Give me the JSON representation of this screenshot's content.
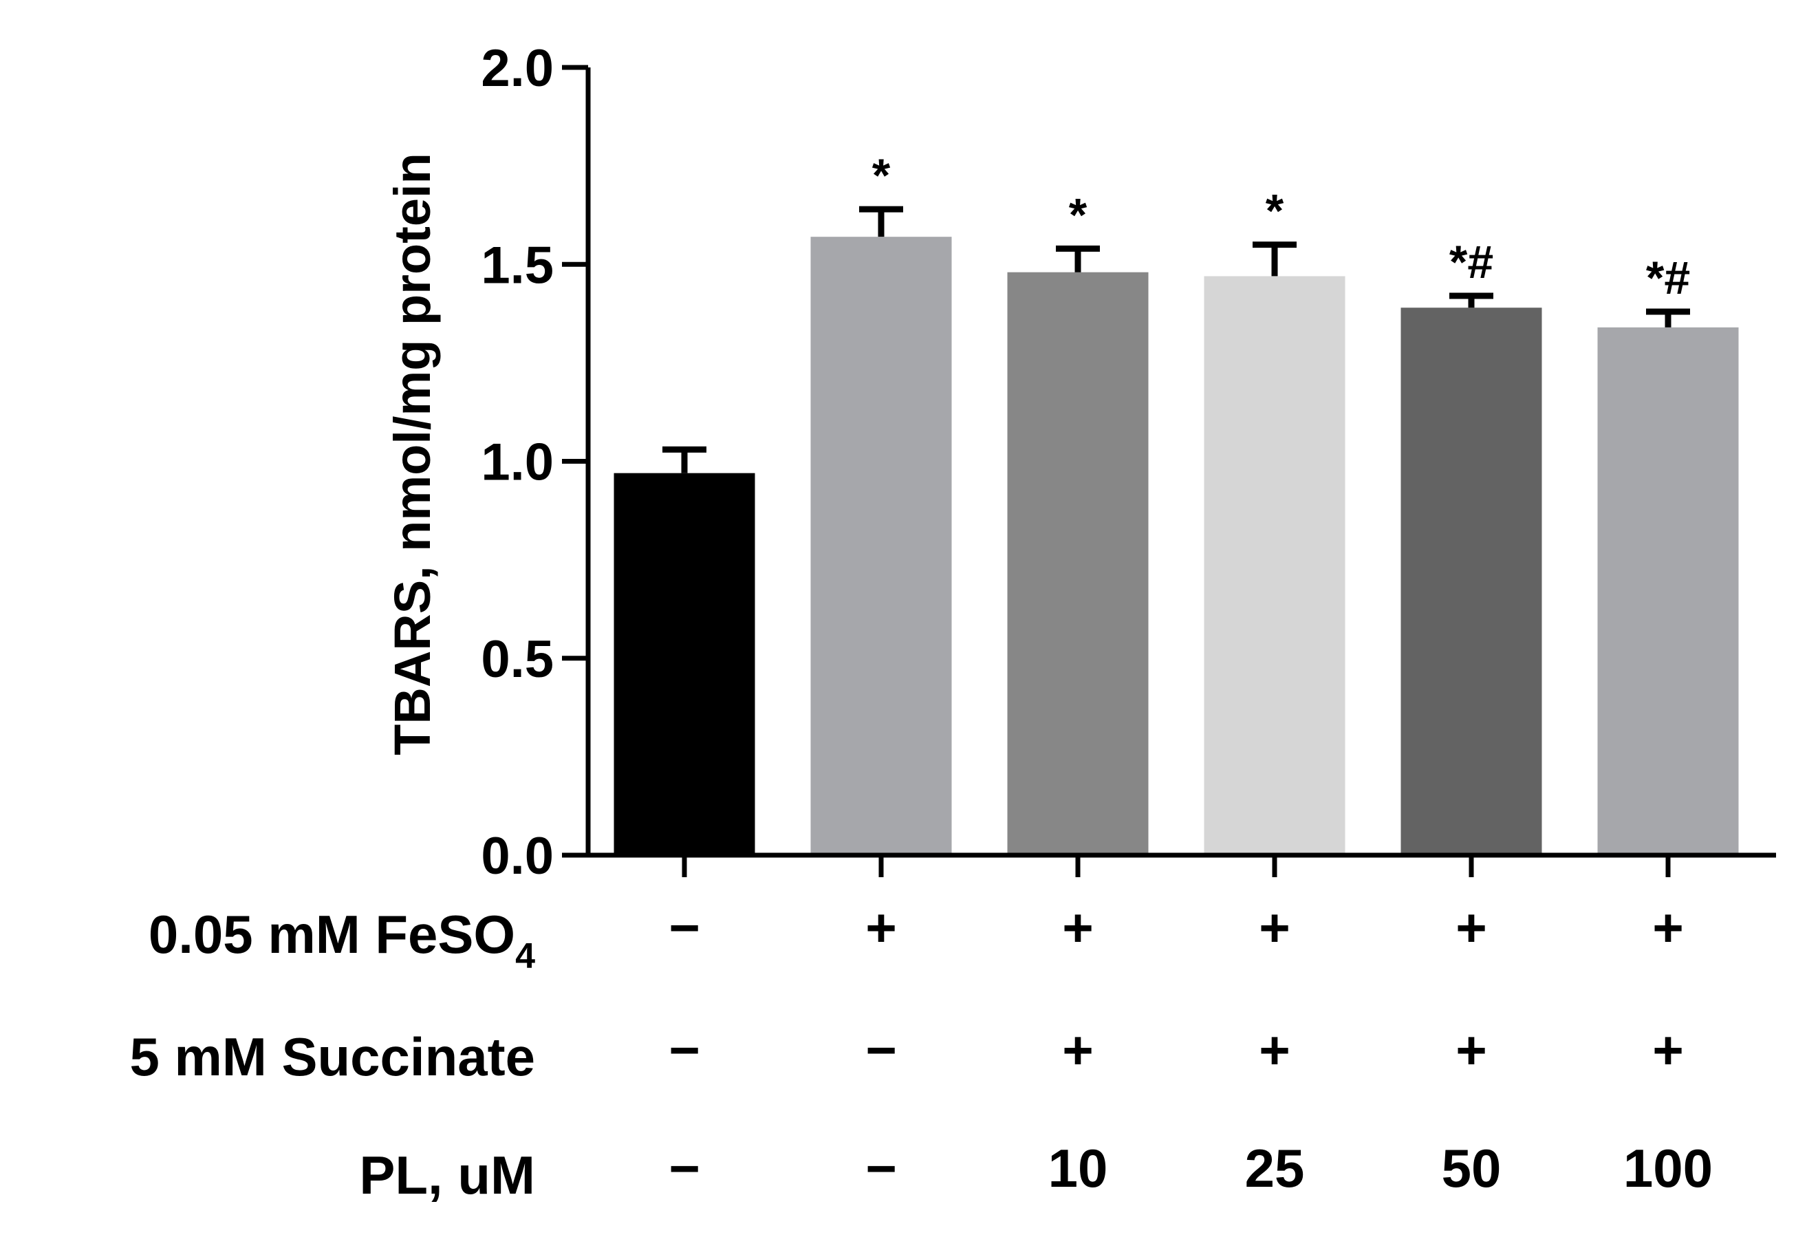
{
  "chart_data": {
    "type": "bar",
    "title": "",
    "xlabel": "",
    "ylabel": "TBARS, nmol/mg protein",
    "ylim": [
      0,
      2.0
    ],
    "yticks": [
      "0.0",
      "0.5",
      "1.0",
      "1.5",
      "2.0"
    ],
    "bars": [
      {
        "value": 0.97,
        "error": 0.06,
        "color": "#000000",
        "sig": ""
      },
      {
        "value": 1.57,
        "error": 0.07,
        "color": "#a6a7ab",
        "sig": "*"
      },
      {
        "value": 1.48,
        "error": 0.06,
        "color": "#878787",
        "sig": "*"
      },
      {
        "value": 1.47,
        "error": 0.08,
        "color": "#d6d6d6",
        "sig": "*"
      },
      {
        "value": 1.39,
        "error": 0.03,
        "color": "#636363",
        "sig": "*#"
      },
      {
        "value": 1.34,
        "error": 0.04,
        "color": "#a6a7ab",
        "sig": "*#"
      }
    ],
    "conditions": [
      {
        "label": "0.05 mM FeSO",
        "subscript": "4",
        "values": [
          "−",
          "+",
          "+",
          "+",
          "+",
          "+"
        ]
      },
      {
        "label": "5 mM Succinate",
        "subscript": "",
        "values": [
          "−",
          "−",
          "+",
          "+",
          "+",
          "+"
        ]
      },
      {
        "label": "PL, uM",
        "subscript": "",
        "values": [
          "−",
          "−",
          "10",
          "25",
          "50",
          "100"
        ]
      }
    ]
  }
}
